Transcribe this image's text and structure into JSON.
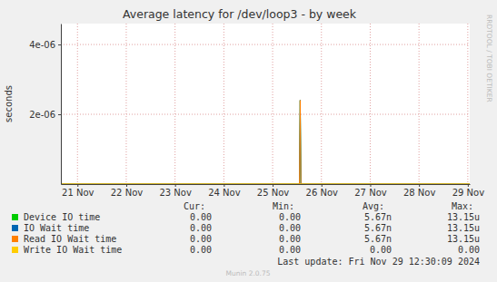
{
  "chart_data": {
    "type": "line",
    "title": "Average latency for /dev/loop3 - by week",
    "y_label": "seconds",
    "side_text": "RRDTOOL / TOBI OETIKER",
    "x": [
      21.16,
      26.05,
      26.065,
      26.08,
      29.54
    ],
    "xlim": [
      21.16,
      29.54
    ],
    "xticks": [
      {
        "value": 21.5,
        "label": "21 Nov"
      },
      {
        "value": 22.5,
        "label": "22 Nov"
      },
      {
        "value": 23.5,
        "label": "23 Nov"
      },
      {
        "value": 24.5,
        "label": "24 Nov"
      },
      {
        "value": 25.5,
        "label": "25 Nov"
      },
      {
        "value": 26.5,
        "label": "26 Nov"
      },
      {
        "value": 27.5,
        "label": "27 Nov"
      },
      {
        "value": 28.5,
        "label": "28 Nov"
      },
      {
        "value": 29.5,
        "label": "29 Nov"
      }
    ],
    "ylim": [
      0,
      4.6e-06
    ],
    "yticks": [
      {
        "value": 2e-06,
        "label": "2e-06"
      },
      {
        "value": 4e-06,
        "label": "4e-06"
      }
    ],
    "grid": true,
    "legend": "bottom",
    "stat_headers": [
      "Cur:",
      "Min:",
      "Avg:",
      "Max:"
    ],
    "series": [
      {
        "name": "Device IO time",
        "color": "#00cc00",
        "values": [
          0,
          0,
          2.4e-06,
          0,
          0
        ],
        "stats": [
          "0.00",
          "0.00",
          "5.67n",
          "13.15u"
        ]
      },
      {
        "name": "IO Wait time",
        "color": "#0066b3",
        "values": [
          0,
          0,
          2.4e-06,
          0,
          0
        ],
        "stats": [
          "0.00",
          "0.00",
          "5.67n",
          "13.15u"
        ]
      },
      {
        "name": "Read IO Wait time",
        "color": "#ff8000",
        "values": [
          0,
          0,
          2.4e-06,
          0,
          0
        ],
        "stats": [
          "0.00",
          "0.00",
          "5.67n",
          "13.15u"
        ]
      },
      {
        "name": "Write IO Wait time",
        "color": "#ffcc00",
        "values": [
          0,
          0,
          0,
          0,
          0
        ],
        "stats": [
          "0.00",
          "0.00",
          "0.00",
          "0.00"
        ]
      }
    ],
    "footer": "Last update: Fri Nov 29 12:30:09 2024",
    "credit": "Munin 2.0.75"
  }
}
